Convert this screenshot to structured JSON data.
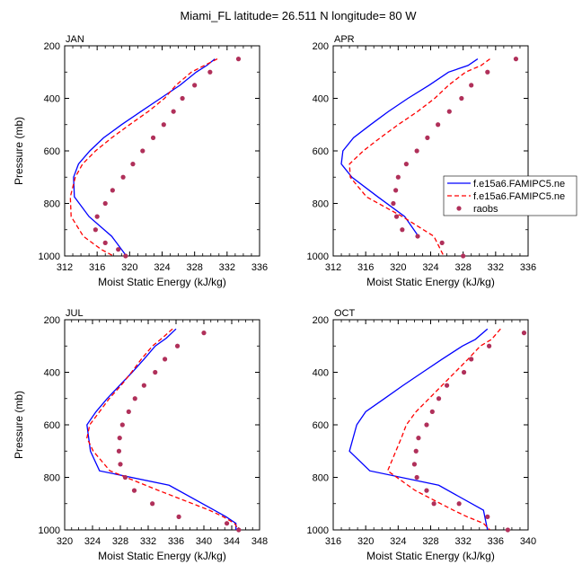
{
  "page": {
    "title": "Miami_FL  latitude= 26.511 N longitude= 80 W"
  },
  "legend": {
    "entries": [
      {
        "label": "f.e15a6.FAMIPC5.ne",
        "style": "solid",
        "color": "#0000ff"
      },
      {
        "label": "f.e15a6.FAMIPC5.ne",
        "style": "dashed",
        "color": "#ff0000"
      },
      {
        "label": "raobs",
        "style": "dots",
        "color": "#b0305a"
      }
    ]
  },
  "colors": {
    "model_solid": "#0000ff",
    "model_dashed": "#ff0000",
    "obs_dots": "#b0305a"
  },
  "chart_data": [
    {
      "type": "line",
      "panel_label": "JAN",
      "xlabel": "Moist Static Energy (kJ/kg)",
      "ylabel": "Pressure (mb)",
      "xlim": [
        312,
        336
      ],
      "xticks": [
        312,
        316,
        320,
        324,
        328,
        332,
        336
      ],
      "ylim": [
        200,
        1000
      ],
      "y_inverted": true,
      "yticks": [
        200,
        400,
        600,
        800,
        1000
      ],
      "grid": false,
      "series": [
        {
          "line_style": "solid",
          "x": [
            330.5,
            329.5,
            328.2,
            326.2,
            323.8,
            321.4,
            319.0,
            316.8,
            315.1,
            313.7,
            313.1,
            313.2,
            315.0,
            317.8,
            319.6
          ],
          "y": [
            250,
            275,
            300,
            350,
            400,
            450,
            500,
            550,
            600,
            650,
            700,
            775,
            850,
            925,
            1000
          ]
        },
        {
          "line_style": "dashed",
          "x": [
            330.8,
            329.2,
            327.6,
            325.7,
            324.3,
            322.3,
            320.0,
            317.8,
            315.8,
            314.2,
            313.3,
            312.7,
            312.8,
            314.3,
            316.5,
            318.0
          ],
          "y": [
            250,
            275,
            300,
            350,
            400,
            450,
            500,
            550,
            600,
            650,
            700,
            775,
            850,
            925,
            975,
            1000
          ]
        },
        {
          "line_style": "dots",
          "x": [
            333.4,
            329.9,
            328.0,
            326.5,
            325.4,
            324.2,
            322.9,
            321.6,
            320.4,
            319.2,
            317.9,
            317.0,
            316.0,
            315.8,
            317.0,
            318.6,
            319.5
          ],
          "y": [
            250,
            300,
            350,
            400,
            450,
            500,
            550,
            600,
            650,
            700,
            750,
            800,
            850,
            900,
            950,
            975,
            1000
          ]
        }
      ]
    },
    {
      "type": "line",
      "panel_label": "APR",
      "xlabel": "Moist Static Energy (kJ/kg)",
      "ylabel": "",
      "xlim": [
        312,
        336
      ],
      "xticks": [
        312,
        316,
        320,
        324,
        328,
        332,
        336
      ],
      "ylim": [
        200,
        1000
      ],
      "y_inverted": true,
      "yticks": [
        200,
        400,
        600,
        800,
        1000
      ],
      "grid": false,
      "series": [
        {
          "line_style": "solid",
          "x": [
            329.8,
            328.6,
            326.2,
            323.8,
            321.2,
            318.8,
            316.6,
            314.5,
            313.2,
            313.0,
            314.3,
            317.5,
            320.8,
            322.5
          ],
          "y": [
            250,
            275,
            300,
            350,
            400,
            450,
            500,
            550,
            600,
            650,
            700,
            775,
            850,
            925
          ]
        },
        {
          "line_style": "dashed",
          "x": [
            331.3,
            330.2,
            328.3,
            326.2,
            324.5,
            322.4,
            320.0,
            317.8,
            315.7,
            314.0,
            314.1,
            316.1,
            320.5,
            324.4,
            325.6
          ],
          "y": [
            250,
            275,
            300,
            350,
            400,
            450,
            500,
            550,
            600,
            650,
            700,
            775,
            850,
            925,
            1000
          ]
        },
        {
          "line_style": "dots",
          "x": [
            334.5,
            331.0,
            329.0,
            327.8,
            326.3,
            324.9,
            323.6,
            322.3,
            321.0,
            320.0,
            319.7,
            319.4,
            319.8,
            320.5,
            322.4,
            325.4,
            328.0
          ],
          "y": [
            250,
            300,
            350,
            400,
            450,
            500,
            550,
            600,
            650,
            700,
            750,
            800,
            850,
            900,
            925,
            950,
            1000
          ]
        }
      ]
    },
    {
      "type": "line",
      "panel_label": "JUL",
      "xlabel": "Moist Static Energy (kJ/kg)",
      "ylabel": "Pressure (mb)",
      "xlim": [
        320,
        348
      ],
      "xticks": [
        320,
        324,
        328,
        332,
        336,
        340,
        344,
        348
      ],
      "ylim": [
        200,
        1000
      ],
      "y_inverted": true,
      "yticks": [
        200,
        400,
        600,
        800,
        1000
      ],
      "grid": false,
      "series": [
        {
          "line_style": "solid",
          "x": [
            336.0,
            334.6,
            333.0,
            331.4,
            329.7,
            327.9,
            326.1,
            324.5,
            323.2,
            323.7,
            325.0,
            335.0,
            341.5,
            343.2,
            344.6,
            344.6
          ],
          "y": [
            235,
            270,
            300,
            350,
            400,
            450,
            500,
            550,
            600,
            700,
            775,
            830,
            925,
            950,
            975,
            1000
          ]
        },
        {
          "line_style": "dashed",
          "x": [
            335.5,
            334.0,
            332.6,
            331.0,
            329.6,
            328.1,
            326.4,
            325.0,
            323.6,
            323.2,
            324.1,
            326.5,
            333.5,
            340.8,
            342.8,
            344.4,
            345.0
          ],
          "y": [
            235,
            270,
            300,
            350,
            400,
            450,
            500,
            550,
            600,
            650,
            700,
            775,
            850,
            925,
            950,
            975,
            1000
          ]
        },
        {
          "line_style": "dots",
          "x": [
            340.0,
            336.2,
            334.4,
            333.0,
            331.4,
            330.1,
            329.2,
            328.3,
            327.9,
            327.8,
            328.0,
            328.7,
            330.0,
            332.6,
            336.4,
            343.3,
            345.0
          ],
          "y": [
            250,
            300,
            350,
            400,
            450,
            500,
            550,
            600,
            650,
            700,
            750,
            800,
            850,
            900,
            950,
            975,
            1000
          ]
        }
      ]
    },
    {
      "type": "line",
      "panel_label": "OCT",
      "xlabel": "Moist Static Energy (kJ/kg)",
      "ylabel": "",
      "xlim": [
        316,
        340
      ],
      "xticks": [
        316,
        320,
        324,
        328,
        332,
        336,
        340
      ],
      "ylim": [
        200,
        1000
      ],
      "y_inverted": true,
      "yticks": [
        200,
        400,
        600,
        800,
        1000
      ],
      "grid": false,
      "series": [
        {
          "line_style": "solid",
          "x": [
            335.0,
            333.5,
            331.9,
            329.4,
            327.0,
            324.6,
            322.3,
            320.0,
            318.9,
            318.0,
            320.5,
            329.0,
            334.5,
            335.0
          ],
          "y": [
            235,
            275,
            300,
            350,
            400,
            450,
            500,
            550,
            600,
            700,
            775,
            830,
            925,
            1000
          ]
        },
        {
          "line_style": "dashed",
          "x": [
            336.6,
            335.5,
            334.1,
            332.6,
            331.0,
            329.4,
            327.8,
            326.2,
            325.0,
            324.4,
            322.7,
            326.1,
            330.8,
            332.5,
            334.5,
            335.3
          ],
          "y": [
            235,
            275,
            300,
            350,
            400,
            450,
            500,
            550,
            600,
            650,
            775,
            850,
            925,
            950,
            975,
            1000
          ]
        },
        {
          "line_style": "dots",
          "x": [
            339.5,
            335.2,
            333.0,
            332.1,
            330.0,
            329.0,
            328.2,
            327.5,
            326.5,
            326.2,
            326.0,
            326.3,
            327.5,
            328.4,
            331.5,
            335.0,
            337.5
          ],
          "y": [
            250,
            300,
            350,
            400,
            450,
            500,
            550,
            600,
            650,
            700,
            750,
            800,
            850,
            900,
            900,
            950,
            1000
          ]
        }
      ]
    }
  ]
}
